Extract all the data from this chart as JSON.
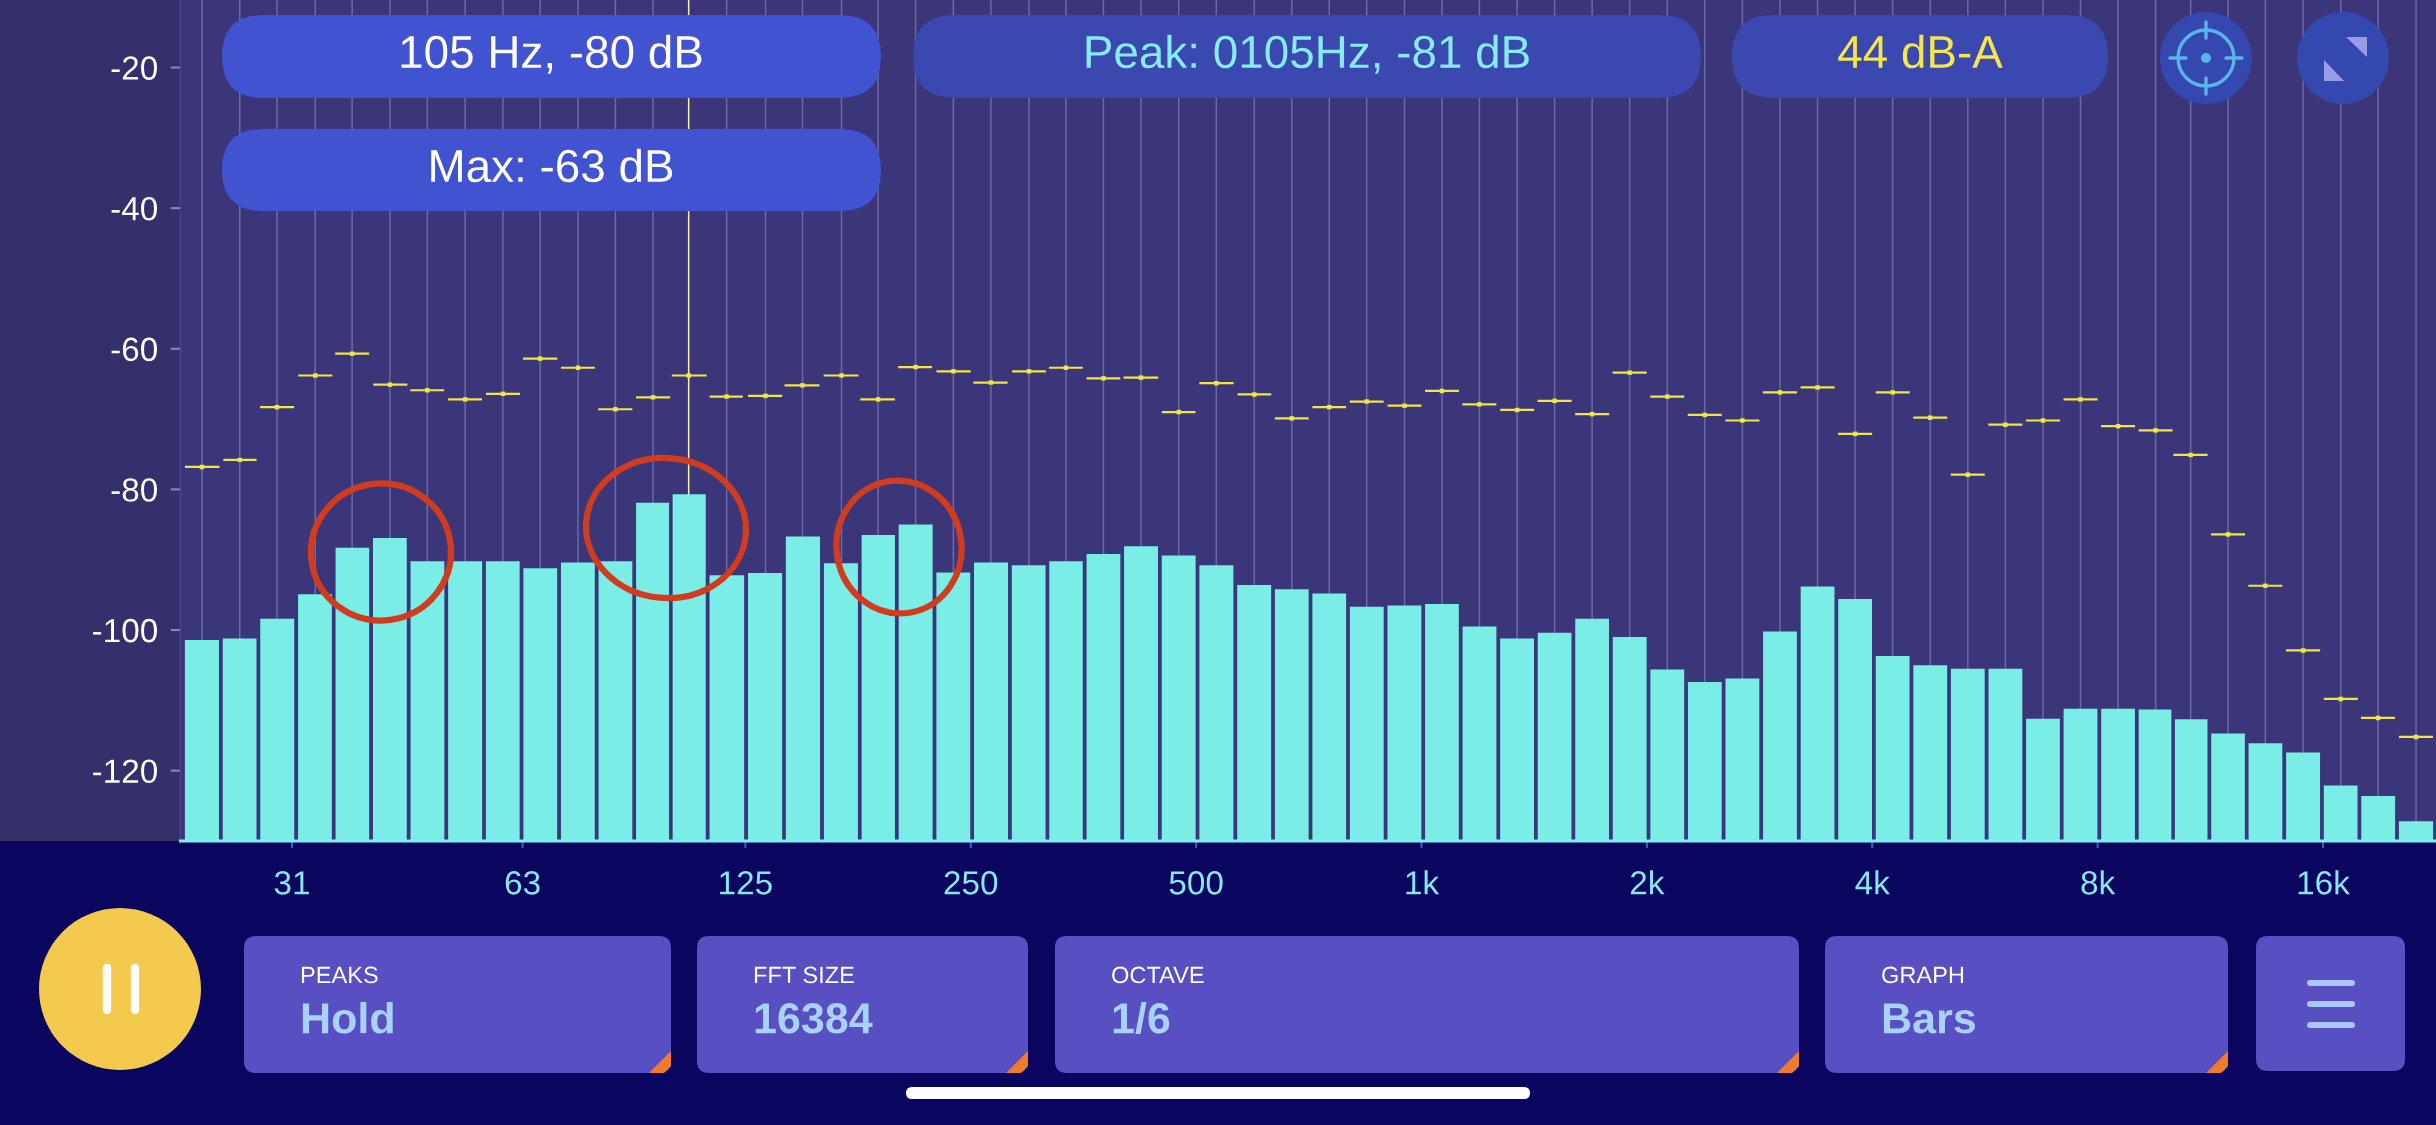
{
  "chart_data": {
    "type": "bar",
    "x": [
      23.5,
      26.4,
      29.6,
      33.3,
      37.3,
      41.9,
      47.0,
      52.8,
      59.3,
      66.5,
      74.7,
      83.8,
      94.1,
      105,
      118,
      133,
      149,
      168,
      188,
      211,
      237,
      266,
      299,
      335,
      376,
      422,
      474,
      532,
      598,
      671,
      753,
      845,
      949,
      1065,
      1195,
      1342,
      1506,
      1690,
      1897,
      2130,
      2390,
      2683,
      3012,
      3381,
      3795,
      4259,
      4781,
      5367,
      6024,
      6762,
      7590,
      8519,
      9562,
      10650,
      11950,
      13400,
      15050,
      16900,
      18950,
      21300
    ],
    "series": [
      {
        "color": "#79ede6",
        "base": [
          -130,
          -130,
          -130,
          -130,
          -130,
          -130,
          -130,
          -130,
          -130,
          -130,
          -130,
          -130,
          -130,
          -130,
          -130,
          -130,
          -130,
          -130,
          -130,
          -130,
          -130,
          -130,
          -130,
          -130,
          -130,
          -130,
          -130,
          -130,
          -130,
          -130,
          -130,
          -130,
          -130,
          -130,
          -130,
          -130,
          -130,
          -130,
          -130,
          -130,
          -130,
          -130,
          -130,
          -130,
          -130,
          -130,
          -130,
          -130,
          -130,
          -130,
          -130,
          -130,
          -130,
          -130,
          -130,
          -130,
          -130,
          -130,
          -130,
          -130
        ],
        "values": [
          28.6,
          28.8,
          31.6,
          35.1,
          41.7,
          43.1,
          39.8,
          39.8,
          39.8,
          38.8,
          39.6,
          39.8,
          48.1,
          49.3,
          37.8,
          38.1,
          43.3,
          39.5,
          43.5,
          45.0,
          38.2,
          39.6,
          39.2,
          39.8,
          40.8,
          41.9,
          40.6,
          39.2,
          36.4,
          35.8,
          35.2,
          33.3,
          33.5,
          33.7,
          30.5,
          28.8,
          29.6,
          31.6,
          29.0,
          24.4,
          22.6,
          23.1,
          29.8,
          36.2,
          34.4,
          26.3,
          25.0,
          24.5,
          24.5,
          17.4,
          18.8,
          18.8,
          18.7,
          17.3,
          15.3,
          13.9,
          12.6,
          7.9,
          6.4,
          2.8
        ]
      },
      {
        "type": "scatter",
        "marker": "square",
        "color": "#f2e640",
        "values": [
          -76.8,
          -75.8,
          -68.3,
          -63.8,
          -60.7,
          -65.1,
          -65.9,
          -67.2,
          -66.4,
          -61.4,
          -62.7,
          -68.6,
          -66.9,
          -63.8,
          -66.8,
          -66.7,
          -65.2,
          -63.8,
          -67.2,
          -62.6,
          -63.2,
          -64.8,
          -63.2,
          -62.7,
          -64.2,
          -64.1,
          -69.0,
          -64.9,
          -66.5,
          -69.9,
          -68.3,
          -67.5,
          -68.1,
          -66.0,
          -67.9,
          -68.7,
          -67.4,
          -69.3,
          -63.4,
          -66.8,
          -69.4,
          -70.2,
          -66.2,
          -65.5,
          -72.1,
          -66.2,
          -69.8,
          -77.9,
          -70.8,
          -70.2,
          -67.2,
          -71.0,
          -71.6,
          -75.1,
          -86.4,
          -93.7,
          -102.9,
          -109.8,
          -112.5,
          -115.2
        ],
        "xerrors": [
          [
            22.3,
            24.8
          ],
          [
            25.1,
            27.8
          ],
          [
            28.1,
            31.2
          ],
          [
            31.6,
            35.1
          ],
          [
            35.4,
            39.3
          ],
          [
            39.8,
            44.2
          ],
          [
            44.6,
            49.5
          ],
          [
            50.1,
            55.6
          ],
          [
            56.3,
            62.5
          ],
          [
            63.1,
            70.1
          ],
          [
            70.9,
            78.7
          ],
          [
            79.5,
            88.3
          ],
          [
            89.3,
            99.2
          ],
          [
            99.7,
            111
          ],
          [
            112,
            124
          ],
          [
            126,
            140
          ],
          [
            141,
            157
          ],
          [
            159,
            177
          ],
          [
            178,
            198
          ],
          [
            200,
            222
          ],
          [
            225,
            250
          ],
          [
            252,
            280
          ],
          [
            284,
            315
          ],
          [
            318,
            353
          ],
          [
            357,
            396
          ],
          [
            400,
            445
          ],
          [
            450,
            499
          ],
          [
            505,
            561
          ],
          [
            568,
            630
          ],
          [
            637,
            707
          ],
          [
            715,
            793
          ],
          [
            802,
            890
          ],
          [
            901,
            1000
          ],
          [
            1011,
            1122
          ],
          [
            1134,
            1259
          ],
          [
            1274,
            1414
          ],
          [
            1429,
            1587
          ],
          [
            1604,
            1781
          ],
          [
            1800,
            1999
          ],
          [
            2021,
            2244
          ],
          [
            2268,
            2518
          ],
          [
            2546,
            2827
          ],
          [
            2858,
            3174
          ],
          [
            3209,
            3563
          ],
          [
            3602,
            3999
          ],
          [
            4042,
            4488
          ],
          [
            4537,
            5038
          ],
          [
            5093,
            5655
          ],
          [
            5717,
            6347
          ],
          [
            6417,
            7125
          ],
          [
            7203,
            7998
          ],
          [
            8085,
            8977
          ],
          [
            9075,
            10075
          ],
          [
            10100,
            11220
          ],
          [
            11340,
            12590
          ],
          [
            12720,
            14120
          ],
          [
            14280,
            15860
          ],
          [
            16040,
            17810
          ],
          [
            17980,
            19970
          ],
          [
            20210,
            22440
          ]
        ]
      }
    ],
    "log": "x",
    "xlim": [
      22,
      22650
    ],
    "xticks": [
      31,
      63,
      125,
      250,
      500,
      {
        "value": 1000,
        "label": "1k"
      },
      {
        "value": 2000,
        "label": "2k"
      },
      {
        "value": 4000,
        "label": "4k"
      },
      {
        "value": 8000,
        "label": "8k"
      },
      {
        "value": 16000,
        "label": "16k"
      }
    ],
    "ylim": [
      -130,
      -10.4
    ],
    "yticks": [
      -120,
      -100,
      -80,
      -60,
      -40,
      -20
    ],
    "ref_lines": [
      {
        "axis": "x",
        "value": 105,
        "color": "#f5f0a0"
      },
      {
        "axis": "x",
        "value": 23.5,
        "color": "#6a68a6"
      },
      {
        "axis": "x",
        "value": 26.4,
        "color": "#6a68a6"
      },
      {
        "axis": "x",
        "value": 29.6,
        "color": "#6a68a6"
      },
      {
        "axis": "x",
        "value": 33.3,
        "color": "#6a68a6"
      },
      {
        "axis": "x",
        "value": 37.3,
        "color": "#6a68a6"
      },
      {
        "axis": "x",
        "value": 41.9,
        "color": "#6a68a6"
      },
      {
        "axis": "x",
        "value": 47.0,
        "color": "#6a68a6"
      },
      {
        "axis": "x",
        "value": 52.8,
        "color": "#6a68a6"
      },
      {
        "axis": "x",
        "value": 59.3,
        "color": "#6a68a6"
      },
      {
        "axis": "x",
        "value": 66.5,
        "color": "#6a68a6"
      },
      {
        "axis": "x",
        "value": 74.7,
        "color": "#6a68a6"
      },
      {
        "axis": "x",
        "value": 83.8,
        "color": "#6a68a6"
      },
      {
        "axis": "x",
        "value": 94.1,
        "color": "#6a68a6"
      },
      {
        "axis": "x",
        "value": 118,
        "color": "#6a68a6"
      },
      {
        "axis": "x",
        "value": 133,
        "color": "#6a68a6"
      },
      {
        "axis": "x",
        "value": 149,
        "color": "#6a68a6"
      },
      {
        "axis": "x",
        "value": 168,
        "color": "#6a68a6"
      },
      {
        "axis": "x",
        "value": 188,
        "color": "#6a68a6"
      },
      {
        "axis": "x",
        "value": 211,
        "color": "#6a68a6"
      },
      {
        "axis": "x",
        "value": 237,
        "color": "#6a68a6"
      },
      {
        "axis": "x",
        "value": 266,
        "color": "#6a68a6"
      },
      {
        "axis": "x",
        "value": 299,
        "color": "#6a68a6"
      },
      {
        "axis": "x",
        "value": 335,
        "color": "#6a68a6"
      },
      {
        "axis": "x",
        "value": 376,
        "color": "#6a68a6"
      },
      {
        "axis": "x",
        "value": 422,
        "color": "#6a68a6"
      },
      {
        "axis": "x",
        "value": 474,
        "color": "#6a68a6"
      },
      {
        "axis": "x",
        "value": 532,
        "color": "#6a68a6"
      },
      {
        "axis": "x",
        "value": 598,
        "color": "#6a68a6"
      },
      {
        "axis": "x",
        "value": 671,
        "color": "#6a68a6"
      },
      {
        "axis": "x",
        "value": 753,
        "color": "#6a68a6"
      },
      {
        "axis": "x",
        "value": 845,
        "color": "#6a68a6"
      },
      {
        "axis": "x",
        "value": 949,
        "color": "#6a68a6"
      },
      {
        "axis": "x",
        "value": 1065,
        "color": "#6a68a6"
      },
      {
        "axis": "x",
        "value": 1195,
        "color": "#6a68a6"
      },
      {
        "axis": "x",
        "value": 1342,
        "color": "#6a68a6"
      },
      {
        "axis": "x",
        "value": 1506,
        "color": "#6a68a6"
      },
      {
        "axis": "x",
        "value": 1690,
        "color": "#6a68a6"
      },
      {
        "axis": "x",
        "value": 1897,
        "color": "#6a68a6"
      },
      {
        "axis": "x",
        "value": 2130,
        "color": "#6a68a6"
      },
      {
        "axis": "x",
        "value": 2390,
        "color": "#6a68a6"
      },
      {
        "axis": "x",
        "value": 2683,
        "color": "#6a68a6"
      },
      {
        "axis": "x",
        "value": 3012,
        "color": "#6a68a6"
      },
      {
        "axis": "x",
        "value": 3381,
        "color": "#6a68a6"
      },
      {
        "axis": "x",
        "value": 3795,
        "color": "#6a68a6"
      },
      {
        "axis": "x",
        "value": 4259,
        "color": "#6a68a6"
      },
      {
        "axis": "x",
        "value": 4781,
        "color": "#6a68a6"
      },
      {
        "axis": "x",
        "value": 5367,
        "color": "#6a68a6"
      },
      {
        "axis": "x",
        "value": 6024,
        "color": "#6a68a6"
      },
      {
        "axis": "x",
        "value": 6762,
        "color": "#6a68a6"
      },
      {
        "axis": "x",
        "value": 7590,
        "color": "#6a68a6"
      },
      {
        "axis": "x",
        "value": 8519,
        "color": "#6a68a6"
      },
      {
        "axis": "x",
        "value": 9562,
        "color": "#6a68a6"
      },
      {
        "axis": "x",
        "value": 10650,
        "color": "#6a68a6"
      },
      {
        "axis": "x",
        "value": 11950,
        "color": "#6a68a6"
      },
      {
        "axis": "x",
        "value": 13400,
        "color": "#6a68a6"
      },
      {
        "axis": "x",
        "value": 15050,
        "color": "#6a68a6"
      },
      {
        "axis": "x",
        "value": 16900,
        "color": "#6a68a6"
      },
      {
        "axis": "x",
        "value": 18950,
        "color": "#6a68a6"
      },
      {
        "axis": "x",
        "value": 21300,
        "color": "#6a68a6"
      }
    ],
    "annotations": [
      "105 Hz, -80 dB",
      "Max: -63 dB",
      "Peak: 0105Hz, -81 dB",
      "44 dB-A",
      "PEAKS",
      "Hold",
      "FFT SIZE",
      "16384",
      "OCTAVE",
      "1/6",
      "GRAPH",
      "Bars"
    ]
  }
}
